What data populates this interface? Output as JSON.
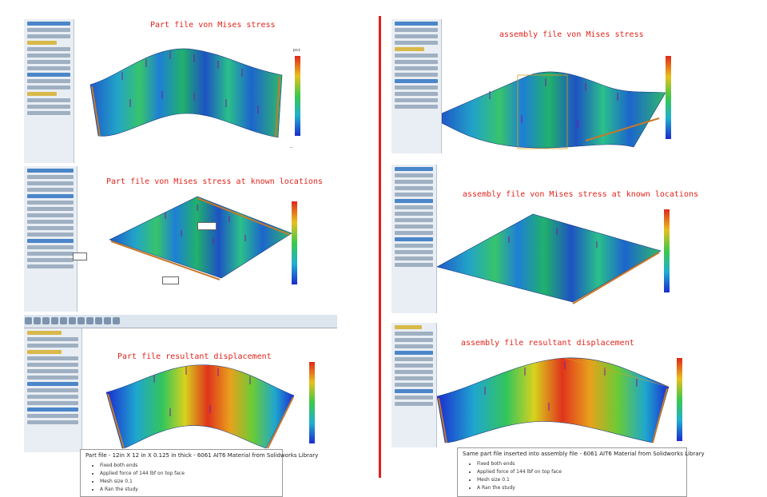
{
  "titles": {
    "p1": "Part file von Mises stress",
    "p2": "Part file von Mises stress at known locations",
    "p3": "Part file resultant displacement",
    "p4": "assembly file von Mises stress",
    "p5": "assembly file von Mises stress at known locations",
    "p6": "assembly file resultant displacement"
  },
  "left_description": {
    "heading": "Part file - 12in X 12 in X 0.125 in thick - 6061 AIT6 Material from Solidworks Library",
    "bullets": [
      "Fixed both ends",
      "Applied force of 144 lbf on top face",
      "Mesh size 0.1",
      "A Ran the study"
    ]
  },
  "right_description": {
    "heading": "Same part file inserted into assembly file - 6061 AIT6 Material from Solidworks Library",
    "bullets": [
      "Fixed both ends",
      "Applied force of 144 lbf on top face",
      "Mesh size 0.1",
      "A Ran the study"
    ]
  },
  "colors": {
    "divider": "#e02020",
    "title": "#e0241b",
    "load_arrow": "#7a1a9a",
    "fixture": "#c8782a"
  }
}
